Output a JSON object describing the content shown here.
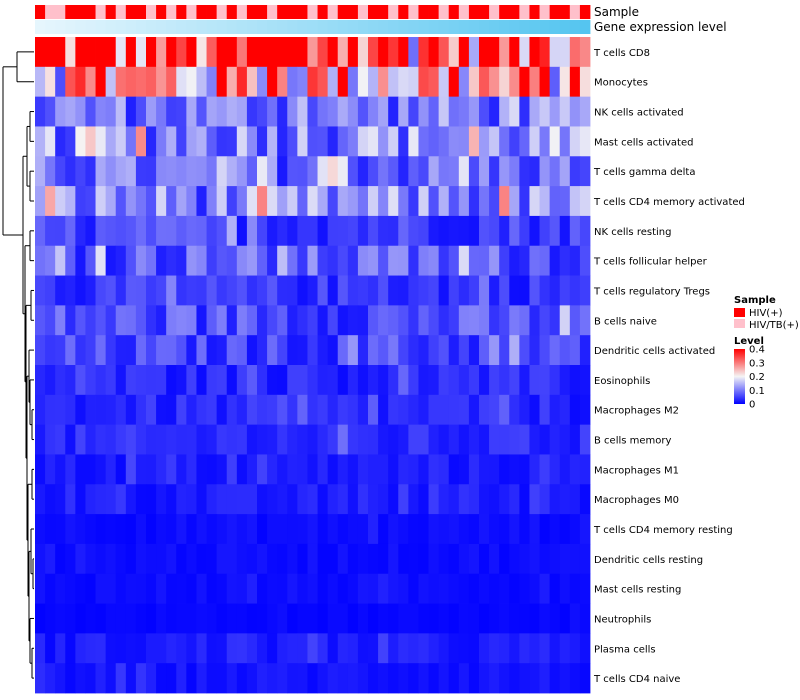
{
  "chart_data": {
    "type": "heatmap",
    "title": "",
    "column_count": 55,
    "annotations": [
      {
        "name": "Sample",
        "kind": "categorical"
      },
      {
        "name": "Gene expression level",
        "kind": "continuous"
      }
    ],
    "sample_groups": [
      "HIV(+)",
      "HIV/TB(+)",
      "HIV/TB(+)",
      "HIV(+)",
      "HIV(+)",
      "HIV(+)",
      "HIV/TB(+)",
      "HIV(+)",
      "HIV/TB(+)",
      "HIV(+)",
      "HIV(+)",
      "HIV/TB(+)",
      "HIV(+)",
      "HIV/TB(+)",
      "HIV(+)",
      "HIV/TB(+)",
      "HIV(+)",
      "HIV(+)",
      "HIV/TB(+)",
      "HIV(+)",
      "HIV/TB(+)",
      "HIV(+)",
      "HIV(+)",
      "HIV/TB(+)",
      "HIV(+)",
      "HIV(+)",
      "HIV(+)",
      "HIV/TB(+)",
      "HIV(+)",
      "HIV/TB(+)",
      "HIV(+)",
      "HIV(+)",
      "HIV/TB(+)",
      "HIV(+)",
      "HIV(+)",
      "HIV/TB(+)",
      "HIV(+)",
      "HIV/TB(+)",
      "HIV(+)",
      "HIV(+)",
      "HIV/TB(+)",
      "HIV(+)",
      "HIV/TB(+)",
      "HIV(+)",
      "HIV(+)",
      "HIV/TB(+)",
      "HIV(+)",
      "HIV(+)",
      "HIV/TB(+)",
      "HIV(+)",
      "HIV/TB(+)",
      "HIV(+)",
      "HIV(+)",
      "HIV/TB(+)",
      "HIV(+)"
    ],
    "rows": [
      "T cells CD8",
      "Monocytes",
      "NK cells activated",
      "Mast cells activated",
      "T cells gamma delta",
      "T cells CD4 memory activated",
      "NK cells resting",
      "T cells follicular helper",
      "T cells regulatory  Tregs",
      "B cells naive",
      "Dendritic cells activated",
      "Eosinophils",
      "Macrophages M2",
      "B cells memory",
      "Macrophages M1",
      "Macrophages M0",
      "T cells CD4 memory resting",
      "Dendritic cells resting",
      "Mast cells resting",
      "Neutrophils",
      "Plasma cells",
      "T cells CD4 naive"
    ],
    "row_means": [
      0.32,
      0.24,
      0.09,
      0.11,
      0.08,
      0.1,
      0.05,
      0.07,
      0.04,
      0.06,
      0.05,
      0.03,
      0.03,
      0.03,
      0.02,
      0.02,
      0.01,
      0.01,
      0.01,
      0.005,
      0.02,
      0.015
    ],
    "value_range": [
      0,
      0.4
    ],
    "legends": {
      "sample": {
        "title": "Sample",
        "items": [
          {
            "label": "HIV(+)",
            "color": "#ff0000"
          },
          {
            "label": "HIV/TB(+)",
            "color": "#ffc0cb"
          }
        ]
      },
      "level": {
        "title": "Level",
        "ticks": [
          0.4,
          0.3,
          0.2,
          0.1,
          0
        ]
      }
    },
    "colors": {
      "low": "#0000ff",
      "mid": "#f5f5f5",
      "high": "#ff0000",
      "expr_low": "#e6f6fd",
      "expr_high": "#55c5f0"
    }
  }
}
